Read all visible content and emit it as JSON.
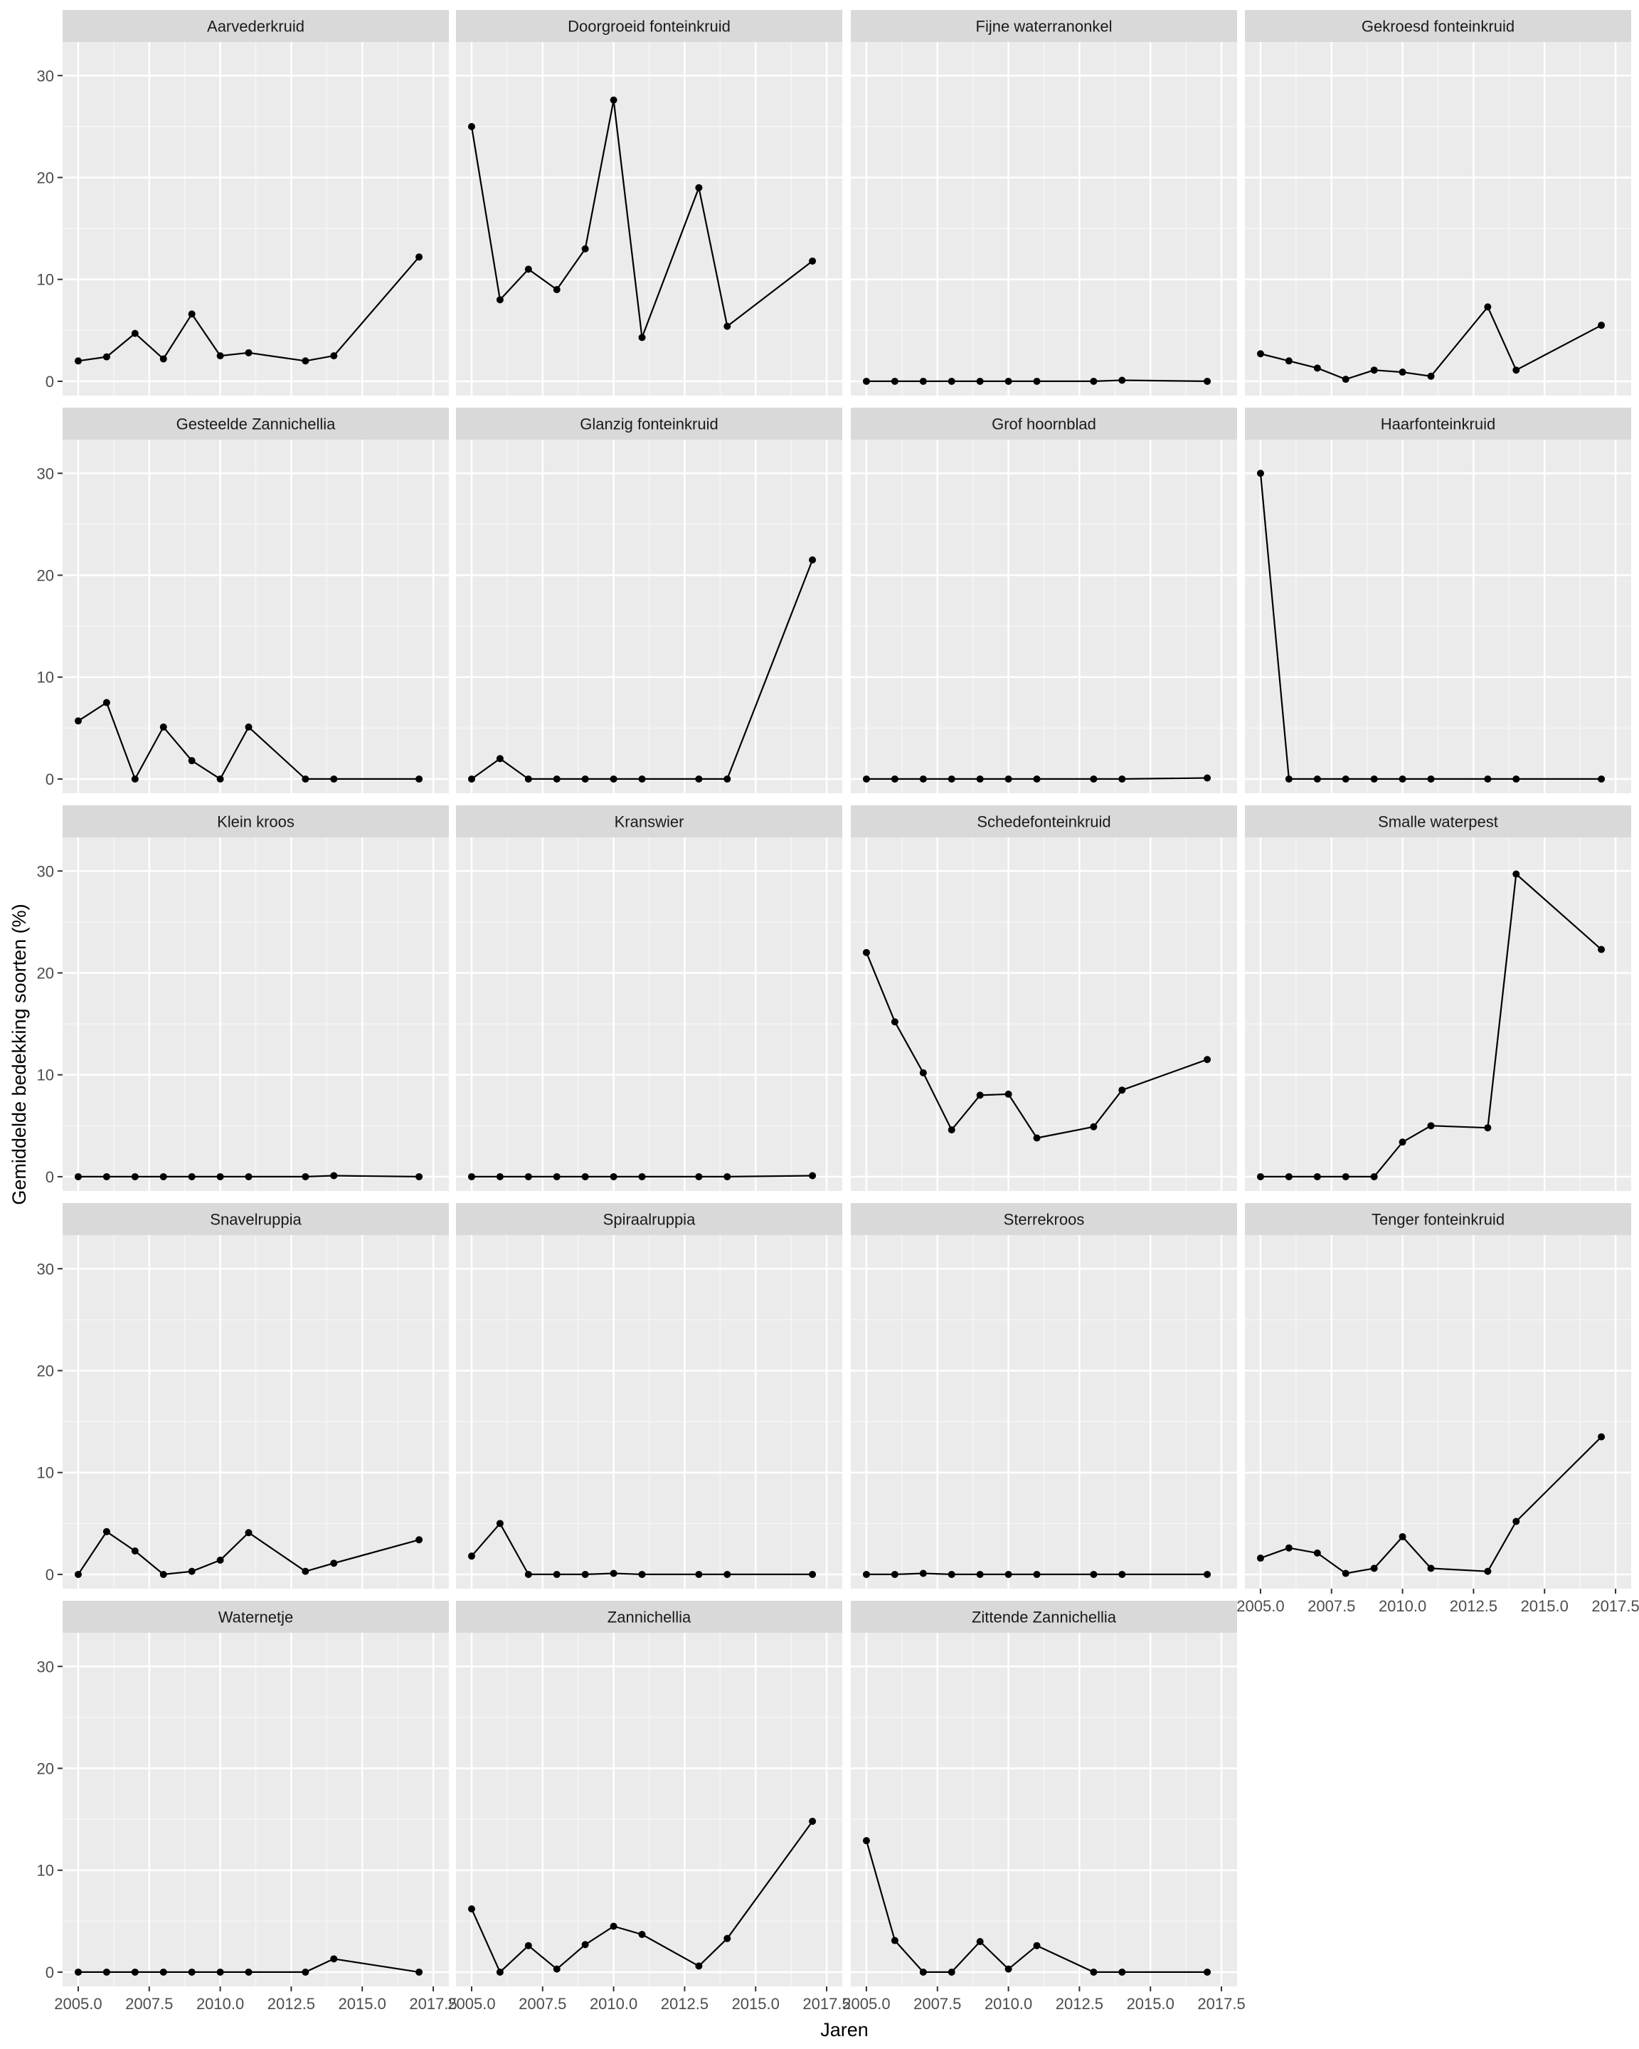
{
  "chart_data": {
    "type": "line",
    "xlabel": "Jaren",
    "ylabel": "Gemiddelde bedekking soorten (%)",
    "x_ticks": [
      2005,
      2007.5,
      2010,
      2012.5,
      2015,
      2017.5
    ],
    "x_tick_labels": [
      "2005.0",
      "2007.5",
      "2010.0",
      "2012.5",
      "2015.0",
      "2017.5"
    ],
    "y_ticks": [
      0,
      10,
      20,
      30
    ],
    "y_tick_labels": [
      "0",
      "10",
      "20",
      "30"
    ],
    "xlim": [
      2004.45,
      2018.05
    ],
    "ylim": [
      -1.4,
      33.3
    ],
    "grid": true,
    "colors": {
      "panel_bg": "#ebebeb",
      "strip_bg": "#d9d9d9",
      "grid_major": "#ffffff",
      "line": "#000000"
    },
    "x": [
      2005,
      2006,
      2007,
      2008,
      2009,
      2010,
      2011,
      2013,
      2014,
      2017
    ],
    "panels": [
      {
        "name": "Aarvederkruid",
        "values": [
          2.0,
          2.4,
          4.7,
          2.2,
          6.6,
          2.5,
          2.8,
          2.0,
          2.5,
          12.2
        ]
      },
      {
        "name": "Doorgroeid fonteinkruid",
        "values": [
          25.0,
          8.0,
          11.0,
          9.0,
          13.0,
          27.6,
          4.3,
          19.0,
          5.4,
          11.8
        ]
      },
      {
        "name": "Fijne waterranonkel",
        "values": [
          0,
          0,
          0,
          0,
          0,
          0,
          0,
          0,
          0.1,
          0
        ]
      },
      {
        "name": "Gekroesd fonteinkruid",
        "values": [
          2.7,
          2.0,
          1.3,
          0.2,
          1.1,
          0.9,
          0.5,
          7.3,
          1.1,
          5.5
        ]
      },
      {
        "name": "Gesteelde Zannichellia",
        "values": [
          5.7,
          7.5,
          0,
          5.1,
          1.8,
          0,
          5.1,
          0,
          0,
          0
        ]
      },
      {
        "name": "Glanzig fonteinkruid",
        "values": [
          0,
          2.0,
          0,
          0,
          0,
          0,
          0,
          0,
          0,
          21.5
        ]
      },
      {
        "name": "Grof hoornblad",
        "values": [
          0,
          0,
          0,
          0,
          0,
          0,
          0,
          0,
          0,
          0.1
        ]
      },
      {
        "name": "Haarfonteinkruid",
        "values": [
          30.0,
          0,
          0,
          0,
          0,
          0,
          0,
          0,
          0,
          0
        ]
      },
      {
        "name": "Klein kroos",
        "values": [
          0,
          0,
          0,
          0,
          0,
          0,
          0,
          0,
          0.1,
          0
        ]
      },
      {
        "name": "Kranswier",
        "values": [
          0,
          0,
          0,
          0,
          0,
          0,
          0,
          0,
          0,
          0.1
        ]
      },
      {
        "name": "Schedefonteinkruid",
        "values": [
          22.0,
          15.2,
          10.2,
          4.6,
          8.0,
          8.1,
          3.8,
          4.9,
          8.5,
          11.5
        ]
      },
      {
        "name": "Smalle waterpest",
        "values": [
          0,
          0,
          0,
          0,
          0,
          3.4,
          5.0,
          4.8,
          29.7,
          22.3
        ]
      },
      {
        "name": "Snavelruppia",
        "values": [
          0,
          4.2,
          2.3,
          0,
          0.3,
          1.4,
          4.1,
          0.3,
          1.1,
          3.4
        ]
      },
      {
        "name": "Spiraalruppia",
        "values": [
          1.8,
          5.0,
          0,
          0,
          0,
          0.1,
          0,
          0,
          0,
          0
        ]
      },
      {
        "name": "Sterrekroos",
        "values": [
          0,
          0,
          0.1,
          0,
          0,
          0,
          0,
          0,
          0,
          0
        ]
      },
      {
        "name": "Tenger fonteinkruid",
        "values": [
          1.6,
          2.6,
          2.1,
          0.1,
          0.6,
          3.7,
          0.6,
          0.3,
          5.2,
          13.5
        ]
      },
      {
        "name": "Waternetje",
        "values": [
          0,
          0,
          0,
          0,
          0,
          0,
          0,
          0,
          1.3,
          0
        ]
      },
      {
        "name": "Zannichellia",
        "values": [
          6.2,
          0,
          2.6,
          0.3,
          2.7,
          4.5,
          3.7,
          0.6,
          3.3,
          14.8
        ]
      },
      {
        "name": "Zittende Zannichellia",
        "values": [
          12.9,
          3.1,
          0,
          0,
          3.0,
          0.3,
          2.6,
          0,
          0,
          0
        ]
      }
    ]
  }
}
